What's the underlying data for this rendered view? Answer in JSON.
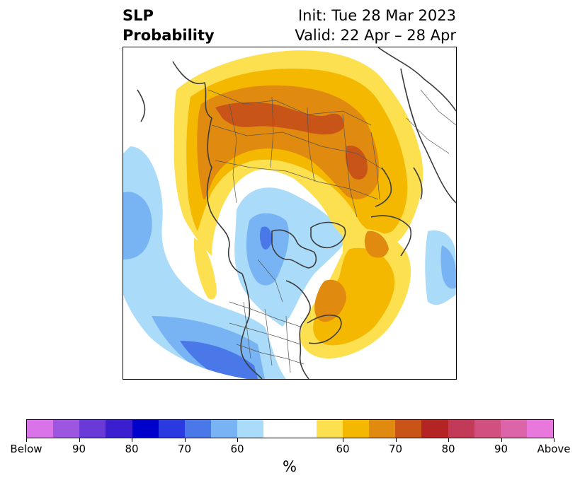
{
  "title": {
    "variable_line1": "SLP",
    "variable_line2": "Probability",
    "init": "Init: Tue 28 Mar 2023",
    "valid": "Valid: 22 Apr – 28 Apr"
  },
  "colorbar": {
    "unit": "%",
    "swatches": [
      "#d874e8",
      "#9c56e0",
      "#6a3ad8",
      "#3a1ed0",
      "#0000cc",
      "#2a3ae0",
      "#4a78e8",
      "#78b4f4",
      "#aadcfa",
      "#ffffff",
      "#ffffff",
      "#fde050",
      "#f4b800",
      "#e08a10",
      "#c85418",
      "#b42424",
      "#c23a58",
      "#d05080",
      "#dc64a8",
      "#e878dc"
    ],
    "ticks": [
      "Below",
      "90",
      "80",
      "70",
      "60",
      "60",
      "70",
      "80",
      "90",
      "Above"
    ]
  },
  "map_colors": {
    "below_60": "#aadcfa",
    "below_70": "#78b4f4",
    "below_80": "#4a78e8",
    "above_50": "#fde050",
    "above_60": "#f4b800",
    "above_70": "#e08a10",
    "above_80": "#c85418",
    "coastline": "#3c3c3c",
    "border": "#555555"
  }
}
